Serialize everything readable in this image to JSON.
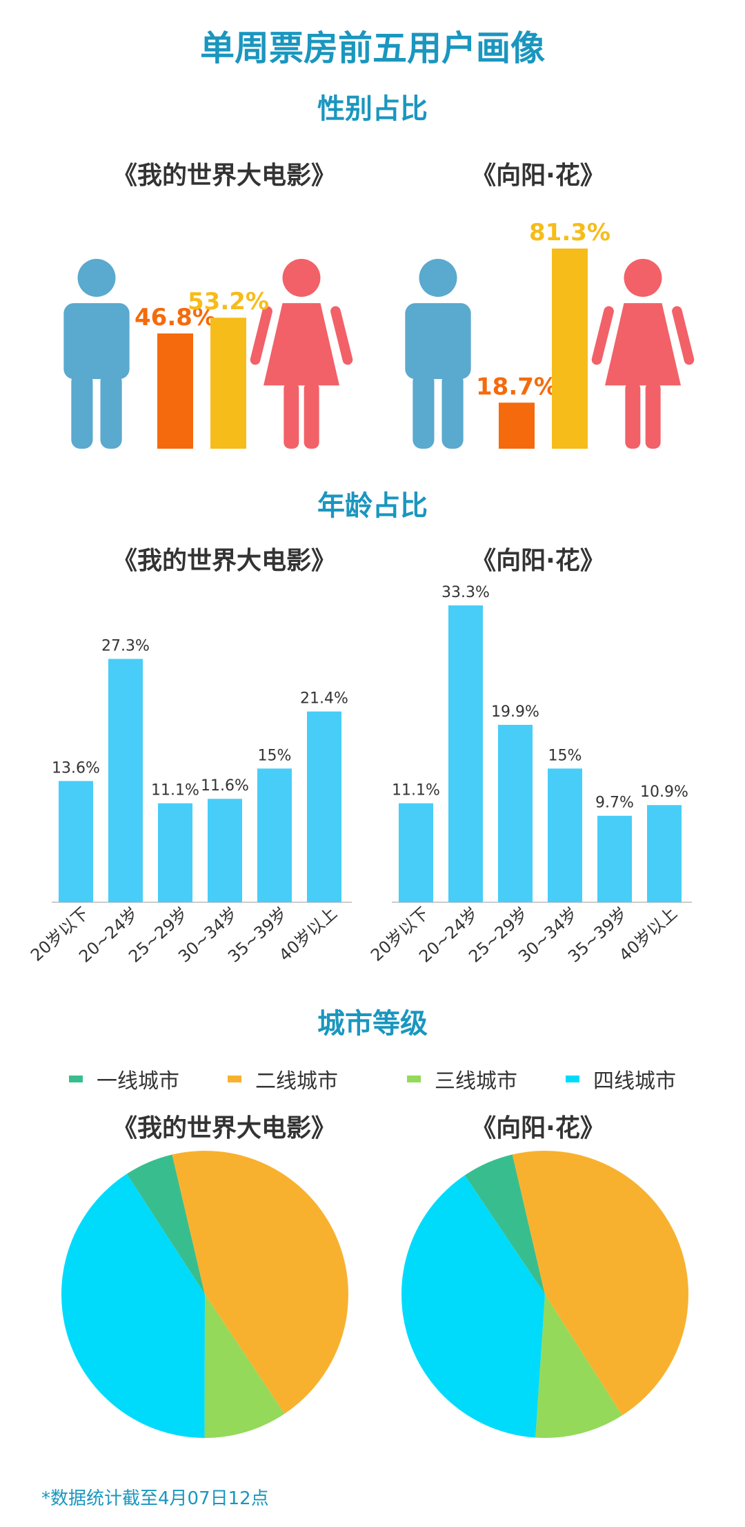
{
  "title": "单周票房前五用户画像",
  "footnote": "*数据统计截至4月07日12点",
  "colors": {
    "male": "#5aa9ce",
    "female": "#f26168",
    "male_bar": "#f56a0c",
    "female_bar": "#f6bc1a",
    "age_bar": "#47cdf7",
    "tier1": "#38be8e",
    "tier2": "#f8b12f",
    "tier3": "#94d95a",
    "tier4": "#00dbfb",
    "heading": "#1a96bf"
  },
  "sections": {
    "gender": "性别占比",
    "age": "年龄占比",
    "city": "城市等级"
  },
  "films": {
    "left": "《我的世界大电影》",
    "right": "《向阳·花》"
  },
  "icons": {
    "male": "male-figure-icon",
    "female": "female-figure-icon"
  },
  "chart_data": [
    {
      "type": "bar",
      "chart": "gender",
      "film": "《我的世界大电影》",
      "categories": [
        "男",
        "女"
      ],
      "values": [
        46.8,
        53.2
      ],
      "labels": [
        "46.8%",
        "53.2%"
      ]
    },
    {
      "type": "bar",
      "chart": "gender",
      "film": "《向阳·花》",
      "categories": [
        "男",
        "女"
      ],
      "values": [
        18.7,
        81.3
      ],
      "labels": [
        "18.7%",
        "81.3%"
      ]
    },
    {
      "type": "bar",
      "chart": "age",
      "film": "《我的世界大电影》",
      "categories": [
        "20岁以下",
        "20~24岁",
        "25~29岁",
        "30~34岁",
        "35~39岁",
        "40岁以上"
      ],
      "values": [
        13.6,
        27.3,
        11.1,
        11.6,
        15,
        21.4
      ],
      "labels": [
        "13.6%",
        "27.3%",
        "11.1%",
        "11.6%",
        "15%",
        "21.4%"
      ]
    },
    {
      "type": "bar",
      "chart": "age",
      "film": "《向阳·花》",
      "categories": [
        "20岁以下",
        "20~24岁",
        "25~29岁",
        "30~34岁",
        "35~39岁",
        "40岁以上"
      ],
      "values": [
        11.1,
        33.3,
        19.9,
        15,
        9.7,
        10.9
      ],
      "labels": [
        "11.1%",
        "33.3%",
        "19.9%",
        "15%",
        "9.7%",
        "10.9%"
      ]
    },
    {
      "type": "pie",
      "chart": "city",
      "film": "《我的世界大电影》",
      "legend": [
        "一线城市",
        "二线城市",
        "三线城市",
        "四线城市"
      ],
      "values": [
        5.5,
        44.3,
        9.4,
        40.8
      ]
    },
    {
      "type": "pie",
      "chart": "city",
      "film": "《向阳·花》",
      "legend": [
        "一线城市",
        "二线城市",
        "三线城市",
        "四线城市"
      ],
      "values": [
        5.8,
        44.6,
        10.1,
        39.5
      ]
    }
  ]
}
